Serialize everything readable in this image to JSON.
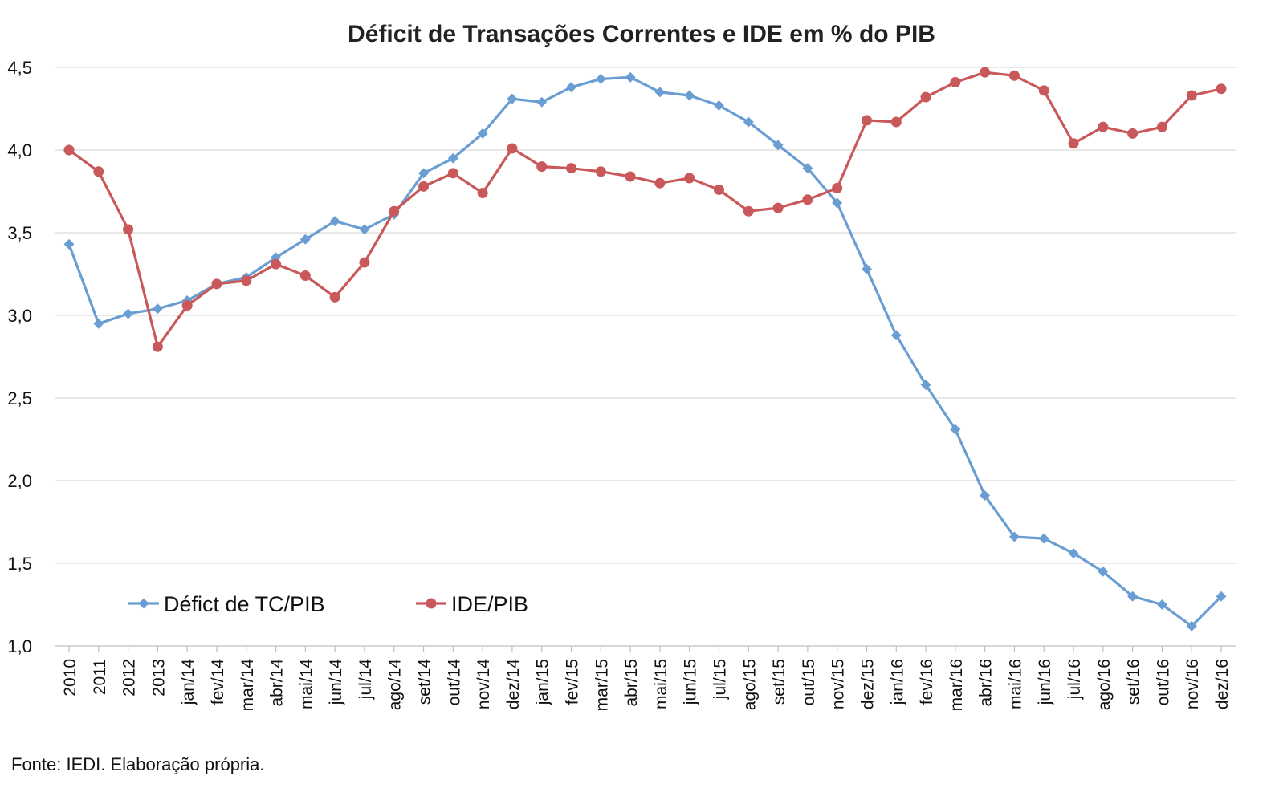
{
  "chart_data": {
    "type": "line",
    "title": "Déficit de Transações Correntes e IDE em % do PIB",
    "xlabel": "",
    "ylabel": "",
    "ylim": [
      1.0,
      4.5
    ],
    "yticks": [
      "1,0",
      "1,5",
      "2,0",
      "2,5",
      "3,0",
      "3,5",
      "4,0",
      "4,5"
    ],
    "grid": true,
    "legend_position": "bottom-left",
    "categories": [
      "2010",
      "2011",
      "2012",
      "2013",
      "jan/14",
      "fev/14",
      "mar/14",
      "abr/14",
      "mai/14",
      "jun/14",
      "jul/14",
      "ago/14",
      "set/14",
      "out/14",
      "nov/14",
      "dez/14",
      "jan/15",
      "fev/15",
      "mar/15",
      "abr/15",
      "mai/15",
      "jun/15",
      "jul/15",
      "ago/15",
      "set/15",
      "out/15",
      "nov/15",
      "dez/15",
      "jan/16",
      "fev/16",
      "mar/16",
      "abr/16",
      "mai/16",
      "jun/16",
      "jul/16",
      "ago/16",
      "set/16",
      "out/16",
      "nov/16",
      "dez/16"
    ],
    "series": [
      {
        "name": "Défict de TC/PIB",
        "color": "#6a9ed3",
        "marker": "diamond",
        "values": [
          3.43,
          2.95,
          3.01,
          3.04,
          3.09,
          3.19,
          3.23,
          3.35,
          3.46,
          3.57,
          3.52,
          3.61,
          3.86,
          3.95,
          4.1,
          4.31,
          4.29,
          4.38,
          4.43,
          4.44,
          4.35,
          4.33,
          4.27,
          4.17,
          4.03,
          3.89,
          3.68,
          3.28,
          2.88,
          2.58,
          2.31,
          1.91,
          1.66,
          1.65,
          1.56,
          1.45,
          1.3,
          1.25,
          1.12,
          1.3
        ]
      },
      {
        "name": "IDE/PIB",
        "color": "#c9585a",
        "marker": "circle",
        "values": [
          4.0,
          3.87,
          3.52,
          2.81,
          3.06,
          3.19,
          3.21,
          3.31,
          3.24,
          3.11,
          3.32,
          3.63,
          3.78,
          3.86,
          3.74,
          4.01,
          3.9,
          3.89,
          3.87,
          3.84,
          3.8,
          3.83,
          3.76,
          3.63,
          3.65,
          3.7,
          3.77,
          4.18,
          4.17,
          4.32,
          4.41,
          4.47,
          4.45,
          4.36,
          4.04,
          4.14,
          4.1,
          4.14,
          4.33,
          4.37
        ]
      }
    ],
    "source": "Fonte: IEDI. Elaboração própria."
  }
}
